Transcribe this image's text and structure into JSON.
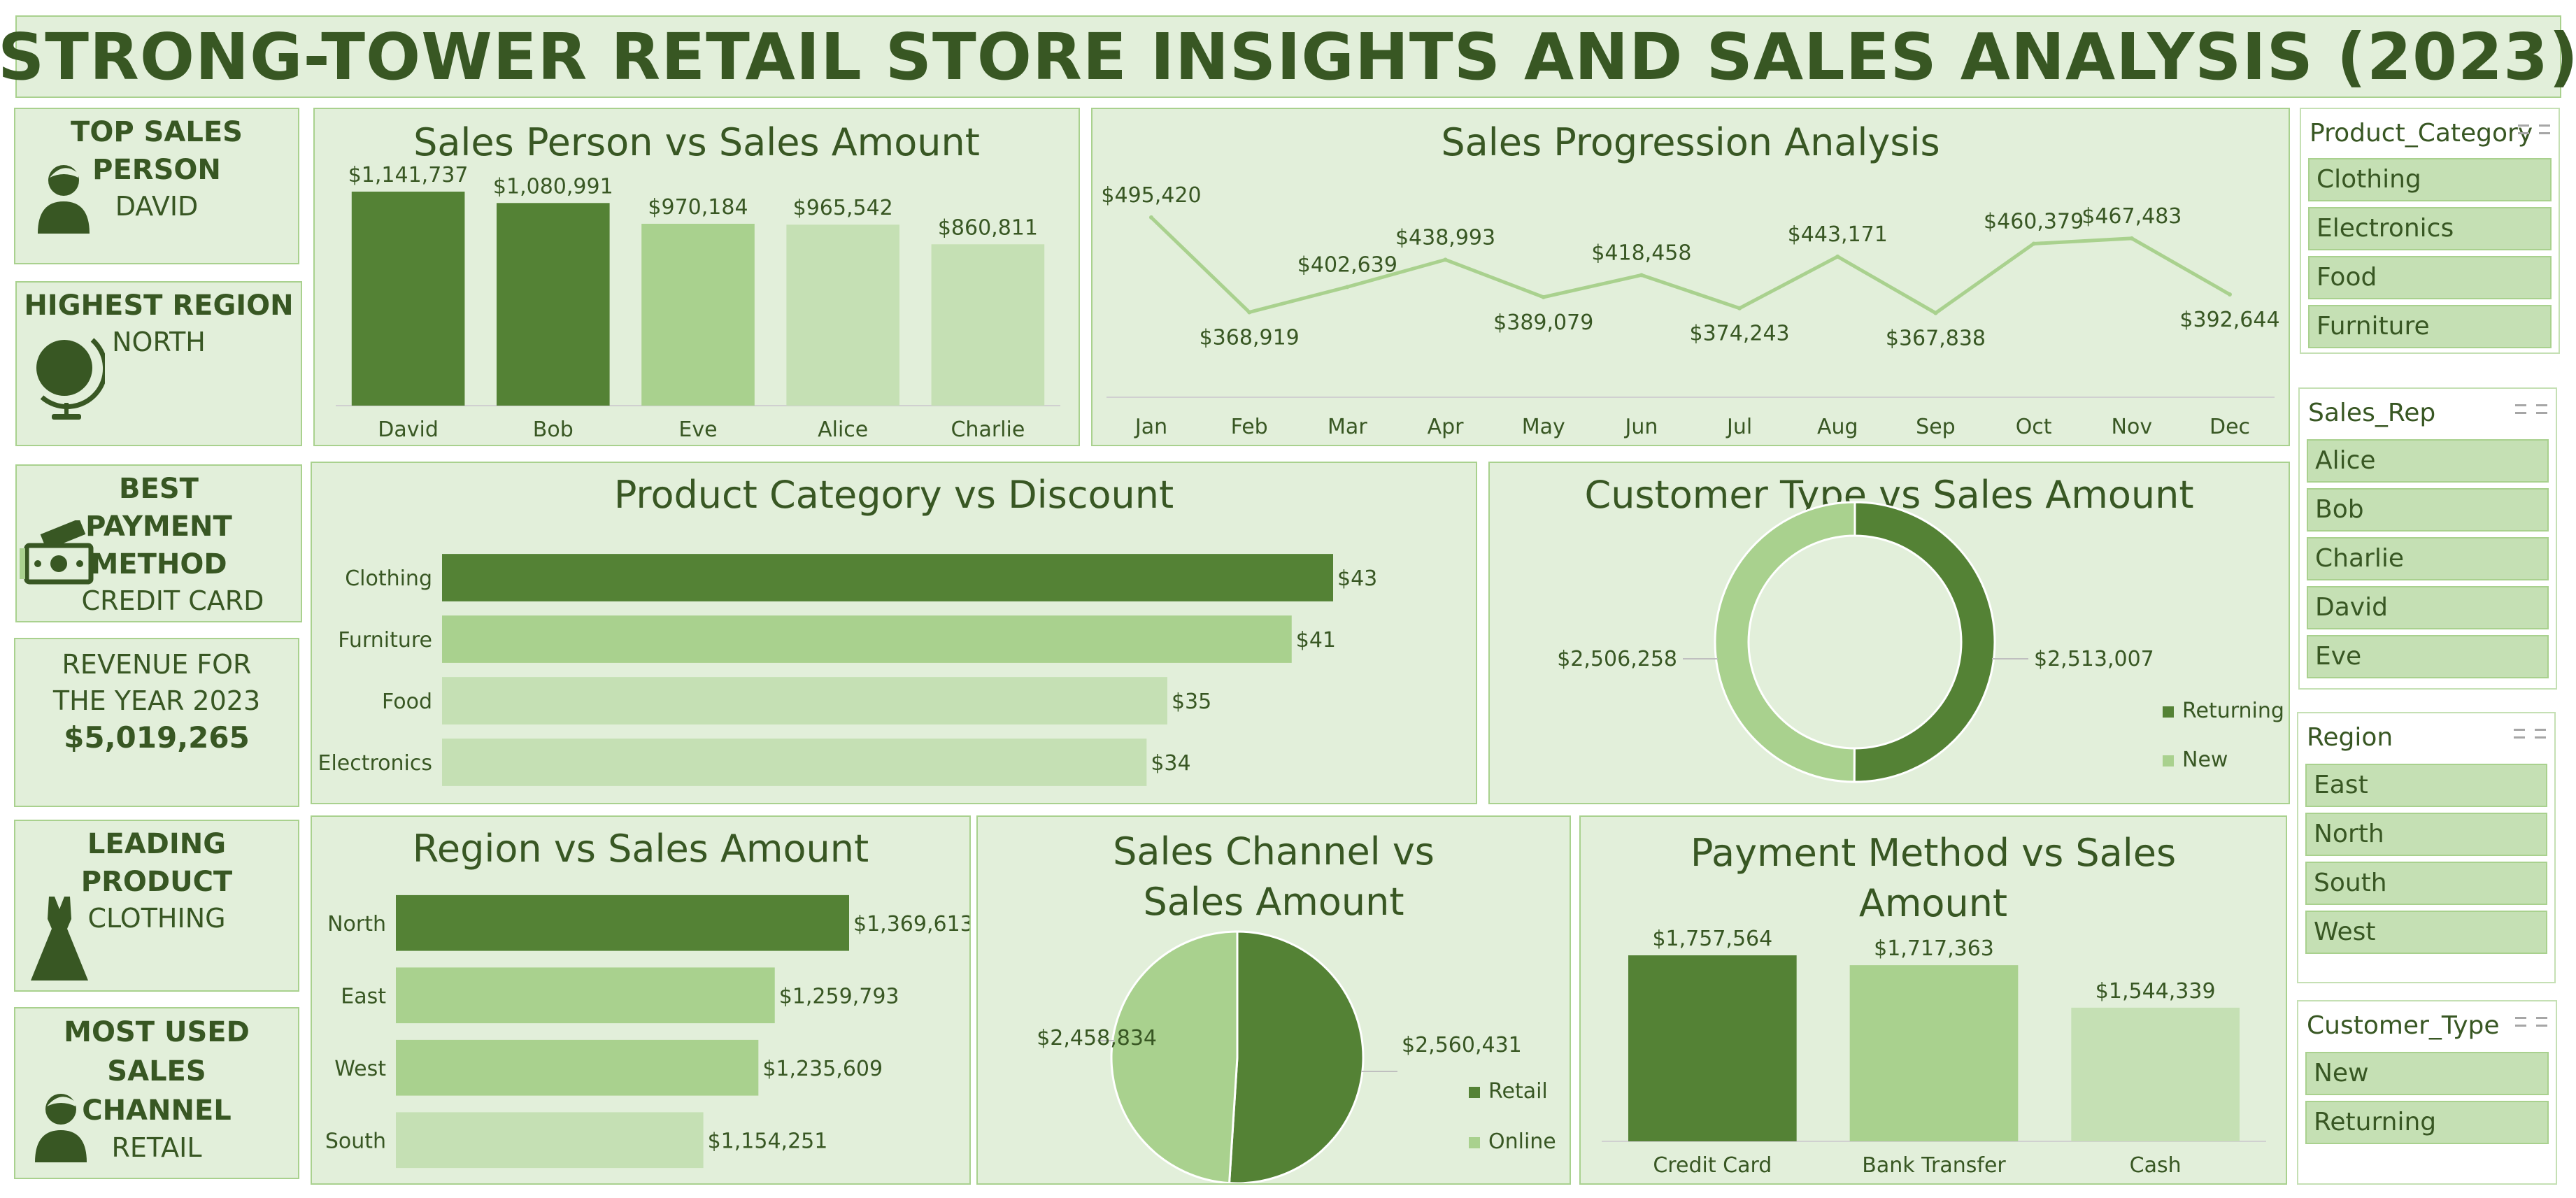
{
  "title": "STRONG-TOWER RETAIL STORE INSIGHTS AND SALES ANALYSIS (2023)",
  "colors": {
    "dark": "#548235",
    "mid": "#a9d18e",
    "light": "#c5e0b4",
    "panel": "#e2efda",
    "text": "#385723"
  },
  "kpis": {
    "top_sales_person": {
      "title": "TOP SALES PERSON",
      "value": "DAVID",
      "icon": "person-icon"
    },
    "highest_region": {
      "title": "HIGHEST REGION",
      "value": "NORTH",
      "icon": "globe-icon"
    },
    "best_payment": {
      "title": "BEST PAYMENT METHOD",
      "value": "CREDIT CARD",
      "icon": "money-icon"
    },
    "revenue": {
      "title": "REVENUE FOR THE YEAR 2023",
      "value": "$5,019,265"
    },
    "leading_product": {
      "title": "LEADING PRODUCT",
      "value": "CLOTHING",
      "icon": "dress-icon"
    },
    "sales_channel": {
      "title": "MOST USED SALES CHANNEL",
      "value": "RETAIL",
      "icon": "person-icon"
    }
  },
  "slicers": [
    {
      "header": "Product_Category",
      "items": [
        "Clothing",
        "Electronics",
        "Food",
        "Furniture"
      ]
    },
    {
      "header": "Sales_Rep",
      "items": [
        "Alice",
        "Bob",
        "Charlie",
        "David",
        "Eve"
      ]
    },
    {
      "header": "Region",
      "items": [
        "East",
        "North",
        "South",
        "West"
      ]
    },
    {
      "header": "Customer_Type",
      "items": [
        "New",
        "Returning"
      ]
    }
  ],
  "chart_data": [
    {
      "id": "salesperson",
      "type": "bar",
      "title": "Sales Person vs Sales Amount",
      "categories": [
        "David",
        "Bob",
        "Eve",
        "Alice",
        "Charlie"
      ],
      "values": [
        1141737,
        1080991,
        970184,
        965542,
        860811
      ],
      "labels": [
        "$1,141,737",
        "$1,080,991",
        "$970,184",
        "$965,542",
        "$860,811"
      ],
      "color_levels": [
        "dark",
        "dark",
        "mid",
        "light",
        "light"
      ],
      "ylim": [
        0,
        1141737
      ]
    },
    {
      "id": "progression",
      "type": "line",
      "title": "Sales Progression Analysis",
      "categories": [
        "Jan",
        "Feb",
        "Mar",
        "Apr",
        "May",
        "Jun",
        "Jul",
        "Aug",
        "Sep",
        "Oct",
        "Nov",
        "Dec"
      ],
      "values": [
        495420,
        368919,
        402639,
        438993,
        389079,
        418458,
        374243,
        443171,
        367838,
        460379,
        467483,
        392644
      ],
      "labels": [
        "$495,420",
        "$368,919",
        "$402,639",
        "$438,993",
        "$389,079",
        "$418,458",
        "$374,243",
        "$443,171",
        "$367,838",
        "$460,379",
        "$467,483",
        "$392,644"
      ]
    },
    {
      "id": "discount",
      "type": "bar",
      "orientation": "horizontal",
      "title": "Product Category vs Discount",
      "categories": [
        "Clothing",
        "Furniture",
        "Food",
        "Electronics"
      ],
      "values": [
        43,
        41,
        35,
        34
      ],
      "labels": [
        "$43",
        "$41",
        "$35",
        "$34"
      ],
      "color_levels": [
        "dark",
        "mid",
        "light",
        "light"
      ]
    },
    {
      "id": "customertype",
      "type": "pie",
      "variant": "donut",
      "title": "Customer Type vs Sales Amount",
      "categories": [
        "Returning",
        "New"
      ],
      "values": [
        2513007,
        2506258
      ],
      "labels": [
        "$2,513,007",
        "$2,506,258"
      ],
      "color_levels": [
        "dark",
        "mid"
      ],
      "legend": "right"
    },
    {
      "id": "region",
      "type": "bar",
      "orientation": "horizontal",
      "title": "Region vs Sales Amount",
      "categories": [
        "North",
        "East",
        "West",
        "South"
      ],
      "values": [
        1369613,
        1259793,
        1235609,
        1154251
      ],
      "labels": [
        "$1,369,613",
        "$1,259,793",
        "$1,235,609",
        "$1,154,251"
      ],
      "color_levels": [
        "dark",
        "mid",
        "mid",
        "light"
      ]
    },
    {
      "id": "channel",
      "type": "pie",
      "title": "Sales Channel vs Sales Amount",
      "categories": [
        "Retail",
        "Online"
      ],
      "values": [
        2560431,
        2458834
      ],
      "labels": [
        "$2,560,431",
        "$2,458,834"
      ],
      "color_levels": [
        "dark",
        "mid"
      ],
      "legend": "right"
    },
    {
      "id": "payment",
      "type": "bar",
      "title": "Payment Method vs Sales Amount",
      "categories": [
        "Credit Card",
        "Bank Transfer",
        "Cash"
      ],
      "values": [
        1757564,
        1717363,
        1544339
      ],
      "labels": [
        "$1,757,564",
        "$1,717,363",
        "$1,544,339"
      ],
      "color_levels": [
        "dark",
        "mid",
        "light"
      ]
    }
  ]
}
